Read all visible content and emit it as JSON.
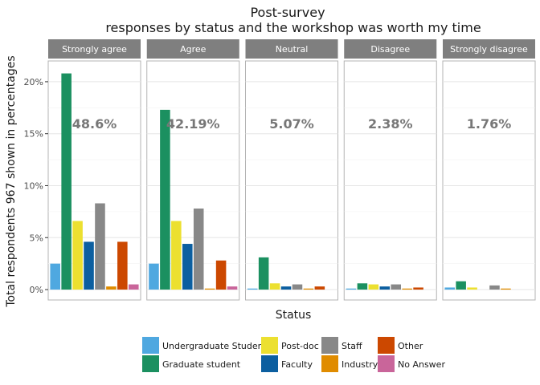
{
  "chart_data": {
    "type": "bar",
    "title_line1": "Post-survey",
    "title_line2": "responses by status and the workshop was worth my time",
    "xlabel": "Status",
    "ylabel": "Total respondents 967 shown in percentages",
    "ylim": [
      -1,
      22
    ],
    "y_ticks": [
      0,
      5,
      10,
      15,
      20
    ],
    "y_tick_labels": [
      "0%",
      "5%",
      "10%",
      "15%",
      "20%"
    ],
    "grid": true,
    "legend_position": "bottom",
    "categories": [
      "Undergraduate Student",
      "Graduate student",
      "Post-doc",
      "Faculty",
      "Staff",
      "Industry",
      "Other",
      "No Answer"
    ],
    "colors": [
      "#4fa8e0",
      "#1b9060",
      "#ece030",
      "#0c5fa0",
      "#888888",
      "#e08c00",
      "#cc4800",
      "#c9659a"
    ],
    "facets": [
      {
        "label": "Strongly agree",
        "percent_label": "48.6%",
        "values": [
          2.5,
          20.8,
          6.6,
          4.6,
          8.3,
          0.3,
          4.6,
          0.5
        ]
      },
      {
        "label": "Agree",
        "percent_label": "42.19%",
        "values": [
          2.5,
          17.3,
          6.6,
          4.4,
          7.8,
          0.1,
          2.8,
          0.3
        ]
      },
      {
        "label": "Neutral",
        "percent_label": "5.07%",
        "values": [
          0.1,
          3.1,
          0.6,
          0.3,
          0.5,
          0.1,
          0.3,
          0.0
        ]
      },
      {
        "label": "Disagree",
        "percent_label": "2.38%",
        "values": [
          0.1,
          0.6,
          0.5,
          0.3,
          0.5,
          0.1,
          0.2,
          0.0
        ]
      },
      {
        "label": "Strongly disagree",
        "percent_label": "1.76%",
        "values": [
          0.2,
          0.8,
          0.2,
          0.0,
          0.4,
          0.1,
          0.0,
          0.0
        ]
      }
    ]
  }
}
